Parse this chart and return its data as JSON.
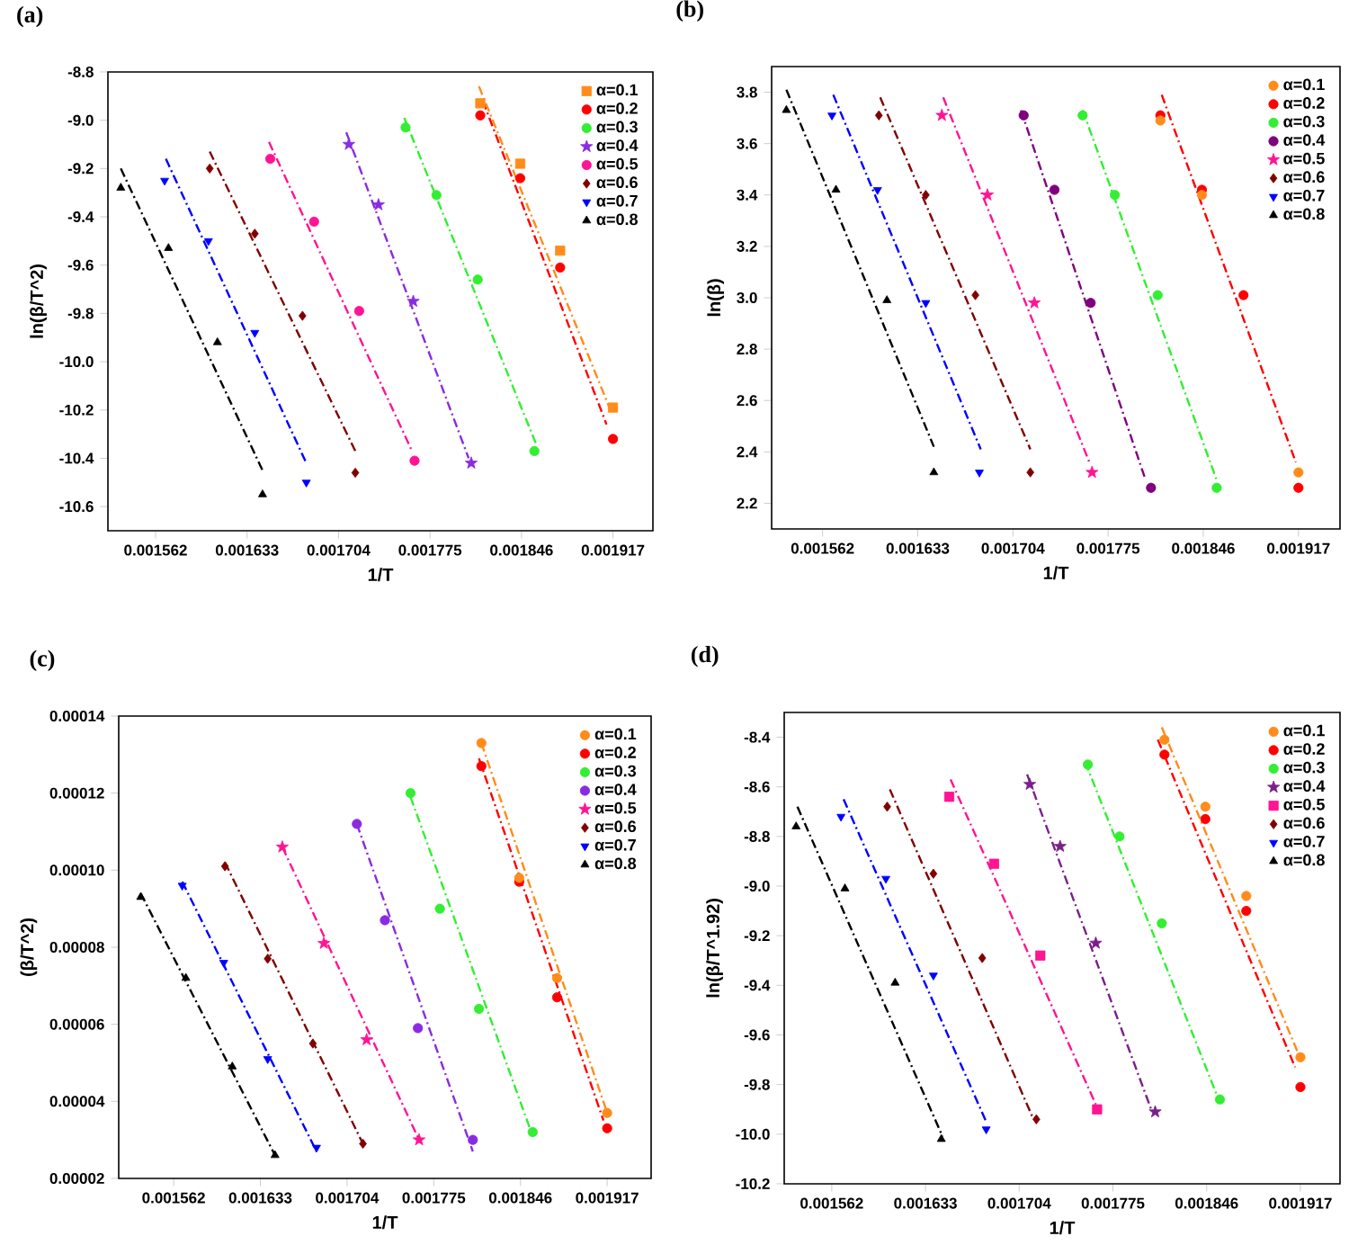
{
  "chart_data": [
    {
      "type": "scatter",
      "title": "(a)",
      "xlabel": "1/T",
      "ylabel": "ln(β/T^2)",
      "xlim": [
        0.001525,
        0.001948
      ],
      "ylim": [
        -10.7,
        -8.8
      ],
      "xticks": [
        0.001562,
        0.001633,
        0.001704,
        0.001775,
        0.001846,
        0.001917
      ],
      "yticks": [
        -8.8,
        {
          "value": -9.0,
          "label": "-9.0"
        },
        -9.2,
        -9.4,
        -9.6,
        -9.8,
        {
          "value": -10.0,
          "label": "-10.0"
        },
        -10.2,
        -10.4,
        -10.6
      ],
      "legend": "top right",
      "series": [
        {
          "name": "α=0.1",
          "marker": "square",
          "color": "#ff8c1a",
          "x": [
            0.001814,
            0.001845,
            0.001876,
            0.001917
          ],
          "values": [
            -8.93,
            -9.18,
            -9.54,
            -10.19
          ]
        },
        {
          "name": "α=0.2",
          "marker": "circle",
          "color": "#ff0000",
          "x": [
            0.001814,
            0.001845,
            0.001876,
            0.001917
          ],
          "values": [
            -8.98,
            -9.24,
            -9.61,
            -10.32
          ]
        },
        {
          "name": "α=0.3",
          "marker": "circle",
          "color": "#33ee33",
          "x": [
            0.001756,
            0.00178,
            0.001812,
            0.001856
          ],
          "values": [
            -9.03,
            -9.31,
            -9.66,
            -10.37
          ]
        },
        {
          "name": "α=0.4",
          "marker": "star",
          "color": "#8a2be2",
          "x": [
            0.001712,
            0.001735,
            0.001762,
            0.001807
          ],
          "values": [
            -9.1,
            -9.35,
            -9.75,
            -10.42
          ]
        },
        {
          "name": "α=0.5",
          "marker": "circle",
          "color": "#ff1493",
          "x": [
            0.001651,
            0.001685,
            0.00172,
            0.001763
          ],
          "values": [
            -9.16,
            -9.42,
            -9.79,
            -10.41
          ]
        },
        {
          "name": "α=0.6",
          "marker": "diamond",
          "color": "#800000",
          "x": [
            0.001604,
            0.001639,
            0.001676,
            0.001717
          ],
          "values": [
            -9.2,
            -9.47,
            -9.81,
            -10.46
          ]
        },
        {
          "name": "α=0.7",
          "marker": "triangle_down",
          "color": "#0000ff",
          "x": [
            0.001569,
            0.001603,
            0.001639,
            0.001679
          ],
          "values": [
            -9.25,
            -9.5,
            -9.88,
            -10.5
          ]
        },
        {
          "name": "α=0.8",
          "marker": "triangle",
          "color": "#000000",
          "x": [
            0.001535,
            0.001572,
            0.00161,
            0.001645
          ],
          "values": [
            -9.28,
            -9.53,
            -9.92,
            -10.55
          ]
        },
        {
          "type": "line",
          "line_style": "dashdot",
          "color": "#ff8c1a",
          "x": [
            0.001813,
            0.001915
          ],
          "values": [
            -8.86,
            -10.2
          ]
        },
        {
          "type": "line",
          "line_style": "dashdot",
          "color": "#ff0000",
          "x": [
            0.001816,
            0.001912
          ],
          "values": [
            -8.92,
            -10.26
          ]
        },
        {
          "type": "line",
          "line_style": "dashdot",
          "color": "#33ee33",
          "x": [
            0.001755,
            0.001858
          ],
          "values": [
            -8.99,
            -10.35
          ]
        },
        {
          "type": "line",
          "line_style": "dashdot",
          "color": "#8a2be2",
          "x": [
            0.00171,
            0.001805
          ],
          "values": [
            -9.05,
            -10.4
          ]
        },
        {
          "type": "line",
          "line_style": "dashdot",
          "color": "#ff1493",
          "x": [
            0.00165,
            0.001761
          ],
          "values": [
            -9.09,
            -10.37
          ]
        },
        {
          "type": "line",
          "line_style": "dashdot",
          "color": "#800000",
          "x": [
            0.001604,
            0.001717
          ],
          "values": [
            -9.13,
            -10.37
          ]
        },
        {
          "type": "line",
          "line_style": "dashdot",
          "color": "#0000ff",
          "x": [
            0.00157,
            0.001679
          ],
          "values": [
            -9.16,
            -10.42
          ]
        },
        {
          "type": "line",
          "line_style": "dashdot",
          "color": "#000000",
          "x": [
            0.001535,
            0.001645
          ],
          "values": [
            -9.2,
            -10.45
          ]
        }
      ]
    },
    {
      "type": "scatter",
      "title": "(b)",
      "xlabel": "1/T",
      "ylabel": "ln(β)",
      "xlim": [
        0.001524,
        0.001948
      ],
      "ylim": [
        2.1,
        3.9
      ],
      "xticks": [
        0.001562,
        0.001633,
        0.001704,
        0.001775,
        0.001846,
        0.001917
      ],
      "yticks": [
        2.2,
        2.4,
        2.6,
        2.8,
        {
          "value": 3.0,
          "label": "3.0"
        },
        3.2,
        3.4,
        3.6,
        3.8
      ],
      "legend": "top right",
      "series": [
        {
          "name": "α=0.1",
          "marker": "circle",
          "color": "#ff8c1a",
          "x": [
            0.001814,
            0.001845,
            0.001876,
            0.001917
          ],
          "values": [
            3.69,
            3.4,
            null,
            2.32
          ]
        },
        {
          "name": "α=0.2",
          "marker": "circle",
          "color": "#ff0000",
          "x": [
            0.001814,
            0.001845,
            0.001876,
            0.001917
          ],
          "values": [
            3.71,
            3.42,
            3.01,
            2.26
          ]
        },
        {
          "name": "α=0.3",
          "marker": "circle",
          "color": "#33ee33",
          "x": [
            0.001756,
            0.00178,
            0.001812,
            0.001856
          ],
          "values": [
            3.71,
            3.4,
            3.01,
            2.26
          ]
        },
        {
          "name": "α=0.4",
          "marker": "circle",
          "color": "#800080",
          "x": [
            0.001712,
            0.001735,
            0.001762,
            0.001807
          ],
          "values": [
            3.71,
            3.42,
            2.98,
            2.26
          ]
        },
        {
          "name": "α=0.5",
          "marker": "star",
          "color": "#ff1493",
          "x": [
            0.001651,
            0.001685,
            0.00172,
            0.001763
          ],
          "values": [
            3.71,
            3.4,
            2.98,
            2.32
          ]
        },
        {
          "name": "α=0.6",
          "marker": "diamond",
          "color": "#800000",
          "x": [
            0.001604,
            0.001639,
            0.001676,
            0.001717
          ],
          "values": [
            3.71,
            3.4,
            3.01,
            2.32
          ]
        },
        {
          "name": "α=0.7",
          "marker": "triangle_down",
          "color": "#0000ff",
          "x": [
            0.001569,
            0.001603,
            0.001639,
            0.001679
          ],
          "values": [
            3.71,
            3.42,
            2.98,
            2.32
          ]
        },
        {
          "name": "α=0.8",
          "marker": "triangle",
          "color": "#000000",
          "x": [
            0.001535,
            0.001572,
            0.00161,
            0.001645
          ],
          "values": [
            3.73,
            3.42,
            2.99,
            2.32
          ]
        },
        {
          "type": "line",
          "line_style": "dashdot",
          "color": "#ff0000",
          "x": [
            0.001815,
            0.001915
          ],
          "values": [
            3.79,
            2.36
          ]
        },
        {
          "type": "line",
          "line_style": "dashdot",
          "color": "#33ee33",
          "x": [
            0.001756,
            0.001856
          ],
          "values": [
            3.73,
            2.29
          ]
        },
        {
          "type": "line",
          "line_style": "dashdot",
          "color": "#800080",
          "x": [
            0.00171,
            0.001803
          ],
          "values": [
            3.73,
            2.29
          ]
        },
        {
          "type": "line",
          "line_style": "dashdot",
          "color": "#ff1493",
          "x": [
            0.001652,
            0.001761
          ],
          "values": [
            3.78,
            2.36
          ]
        },
        {
          "type": "line",
          "line_style": "dashdot",
          "color": "#800000",
          "x": [
            0.001605,
            0.001717
          ],
          "values": [
            3.78,
            2.41
          ]
        },
        {
          "type": "line",
          "line_style": "dashdot",
          "color": "#0000ff",
          "x": [
            0.00157,
            0.00168
          ],
          "values": [
            3.79,
            2.41
          ]
        },
        {
          "type": "line",
          "line_style": "dashdot",
          "color": "#000000",
          "x": [
            0.001535,
            0.001645
          ],
          "values": [
            3.81,
            2.42
          ]
        }
      ]
    },
    {
      "type": "scatter",
      "title": "(c)",
      "xlabel": "1/T",
      "ylabel": "(β/T^2)",
      "xlim": [
        0.001517,
        0.001953
      ],
      "ylim": [
        2e-05,
        0.00014
      ],
      "xticks": [
        0.001562,
        0.001633,
        0.001704,
        0.001775,
        0.001846,
        0.001917
      ],
      "yticks": [
        {
          "value": 2e-05,
          "label": "0.00002"
        },
        {
          "value": 4e-05,
          "label": "0.00004"
        },
        {
          "value": 6e-05,
          "label": "0.00006"
        },
        {
          "value": 8e-05,
          "label": "0.00008"
        },
        {
          "value": 0.0001,
          "label": "0.00010"
        },
        {
          "value": 0.00012,
          "label": "0.00012"
        },
        {
          "value": 0.00014,
          "label": "0.00014"
        }
      ],
      "legend": "top right",
      "series": [
        {
          "name": "α=0.1",
          "marker": "circle",
          "color": "#ff8c1a",
          "x": [
            0.001814,
            0.001845,
            0.001876,
            0.001917
          ],
          "values": [
            0.000133,
            9.8e-05,
            7.2e-05,
            3.7e-05
          ]
        },
        {
          "name": "α=0.2",
          "marker": "circle",
          "color": "#ff0000",
          "x": [
            0.001814,
            0.001845,
            0.001876,
            0.001917
          ],
          "values": [
            0.000127,
            9.7e-05,
            6.7e-05,
            3.3e-05
          ]
        },
        {
          "name": "α=0.3",
          "marker": "circle",
          "color": "#33ee33",
          "x": [
            0.001756,
            0.00178,
            0.001812,
            0.001856
          ],
          "values": [
            0.00012,
            9e-05,
            6.4e-05,
            3.2e-05
          ]
        },
        {
          "name": "α=0.4",
          "marker": "circle",
          "color": "#8a2be2",
          "x": [
            0.001712,
            0.001735,
            0.001762,
            0.001807
          ],
          "values": [
            0.000112,
            8.7e-05,
            5.9e-05,
            3e-05
          ]
        },
        {
          "name": "α=0.5",
          "marker": "star",
          "color": "#ff1493",
          "x": [
            0.001651,
            0.001685,
            0.00172,
            0.001763
          ],
          "values": [
            0.000106,
            8.1e-05,
            5.6e-05,
            3e-05
          ]
        },
        {
          "name": "α=0.6",
          "marker": "diamond",
          "color": "#800000",
          "x": [
            0.001604,
            0.001639,
            0.001676,
            0.001717
          ],
          "values": [
            0.000101,
            7.7e-05,
            5.5e-05,
            2.9e-05
          ]
        },
        {
          "name": "α=0.7",
          "marker": "triangle_down",
          "color": "#0000ff",
          "x": [
            0.001569,
            0.001603,
            0.001639,
            0.001679
          ],
          "values": [
            9.6e-05,
            7.6e-05,
            5.1e-05,
            2.8e-05
          ]
        },
        {
          "name": "α=0.8",
          "marker": "triangle",
          "color": "#000000",
          "x": [
            0.001535,
            0.001572,
            0.00161,
            0.001645
          ],
          "values": [
            9.3e-05,
            7.2e-05,
            4.9e-05,
            2.6e-05
          ]
        },
        {
          "type": "line",
          "line_style": "dashdot",
          "color": "#ff8c1a",
          "x": [
            0.001814,
            0.001916
          ],
          "values": [
            0.000133,
            3.8e-05
          ]
        },
        {
          "type": "line",
          "line_style": "dashdot",
          "color": "#ff0000",
          "x": [
            0.001812,
            0.001914
          ],
          "values": [
            0.000129,
            3.5e-05
          ]
        },
        {
          "type": "line",
          "line_style": "dashdot",
          "color": "#33ee33",
          "x": [
            0.001756,
            0.001856
          ],
          "values": [
            0.000119,
            3.1e-05
          ]
        },
        {
          "type": "line",
          "line_style": "dashdot",
          "color": "#8a2be2",
          "x": [
            0.001712,
            0.001807
          ],
          "values": [
            0.000112,
            2.7e-05
          ]
        },
        {
          "type": "line",
          "line_style": "dashdot",
          "color": "#ff1493",
          "x": [
            0.001651,
            0.001763
          ],
          "values": [
            0.000106,
            3e-05
          ]
        },
        {
          "type": "line",
          "line_style": "dashdot",
          "color": "#800000",
          "x": [
            0.001604,
            0.001717
          ],
          "values": [
            0.000102,
            2.9e-05
          ]
        },
        {
          "type": "line",
          "line_style": "dashdot",
          "color": "#0000ff",
          "x": [
            0.001569,
            0.001679
          ],
          "values": [
            9.7e-05,
            2.7e-05
          ]
        },
        {
          "type": "line",
          "line_style": "dashdot",
          "color": "#000000",
          "x": [
            0.001535,
            0.001645
          ],
          "values": [
            9.4e-05,
            2.6e-05
          ]
        }
      ]
    },
    {
      "type": "scatter",
      "title": "(d)",
      "xlabel": "1/T",
      "ylabel": "ln(β/T^1.92)",
      "xlim": [
        0.001526,
        0.001947
      ],
      "ylim": [
        -10.2,
        -8.3
      ],
      "xticks": [
        0.001562,
        0.001633,
        0.001704,
        0.001775,
        0.001846,
        0.001917
      ],
      "yticks": [
        -8.4,
        -8.6,
        -8.8,
        {
          "value": -9.0,
          "label": "-9.0"
        },
        -9.2,
        -9.4,
        -9.6,
        -9.8,
        {
          "value": -10.0,
          "label": "-10.0"
        },
        -10.2
      ],
      "legend": "top right",
      "series": [
        {
          "name": "α=0.1",
          "marker": "circle",
          "color": "#ff8c1a",
          "x": [
            0.001814,
            0.001845,
            0.001876,
            0.001917
          ],
          "values": [
            -8.41,
            -8.68,
            -9.04,
            -9.69
          ]
        },
        {
          "name": "α=0.2",
          "marker": "circle",
          "color": "#ff0000",
          "x": [
            0.001814,
            0.001845,
            0.001876,
            0.001917
          ],
          "values": [
            -8.47,
            -8.73,
            -9.1,
            -9.81
          ]
        },
        {
          "name": "α=0.3",
          "marker": "circle",
          "color": "#33ee33",
          "x": [
            0.001756,
            0.00178,
            0.001812,
            0.001856
          ],
          "values": [
            -8.51,
            -8.8,
            -9.15,
            -9.86
          ]
        },
        {
          "name": "α=0.4",
          "marker": "star",
          "color": "#7b1f8a",
          "x": [
            0.001712,
            0.001735,
            0.001762,
            0.001807
          ],
          "values": [
            -8.59,
            -8.84,
            -9.23,
            -9.91
          ]
        },
        {
          "name": "α=0.5",
          "marker": "square",
          "color": "#ff1493",
          "x": [
            0.001651,
            0.001685,
            0.00172,
            0.001763
          ],
          "values": [
            -8.64,
            -8.91,
            -9.28,
            -9.9
          ]
        },
        {
          "name": "α=0.6",
          "marker": "diamond",
          "color": "#800000",
          "x": [
            0.001604,
            0.001639,
            0.001676,
            0.001717
          ],
          "values": [
            -8.68,
            -8.95,
            -9.29,
            -9.94
          ]
        },
        {
          "name": "α=0.7",
          "marker": "triangle_down",
          "color": "#0000ff",
          "x": [
            0.001569,
            0.001603,
            0.001639,
            0.001679
          ],
          "values": [
            -8.72,
            -8.97,
            -9.36,
            -9.98
          ]
        },
        {
          "name": "α=0.8",
          "marker": "triangle",
          "color": "#000000",
          "x": [
            0.001535,
            0.001572,
            0.00161,
            0.001645
          ],
          "values": [
            -8.76,
            -9.01,
            -9.39,
            -10.02
          ]
        },
        {
          "type": "line",
          "line_style": "dashdot",
          "color": "#ff8c1a",
          "x": [
            0.001812,
            0.001915
          ],
          "values": [
            -8.36,
            -9.67
          ]
        },
        {
          "type": "line",
          "line_style": "dashdot",
          "color": "#ff0000",
          "x": [
            0.001809,
            0.001913
          ],
          "values": [
            -8.41,
            -9.73
          ]
        },
        {
          "type": "line",
          "line_style": "dashdot",
          "color": "#33ee33",
          "x": [
            0.001754,
            0.001855
          ],
          "values": [
            -8.5,
            -9.86
          ]
        },
        {
          "type": "line",
          "line_style": "dashdot",
          "color": "#7b1f8a",
          "x": [
            0.00171,
            0.001804
          ],
          "values": [
            -8.55,
            -9.9
          ]
        },
        {
          "type": "line",
          "line_style": "dashdot",
          "color": "#ff1493",
          "x": [
            0.001652,
            0.001762
          ],
          "values": [
            -8.57,
            -9.88
          ]
        },
        {
          "type": "line",
          "line_style": "dashdot",
          "color": "#800000",
          "x": [
            0.001606,
            0.001714
          ],
          "values": [
            -8.61,
            -9.93
          ]
        },
        {
          "type": "line",
          "line_style": "dashdot",
          "color": "#0000ff",
          "x": [
            0.001571,
            0.001679
          ],
          "values": [
            -8.65,
            -9.95
          ]
        },
        {
          "type": "line",
          "line_style": "dashdot",
          "color": "#000000",
          "x": [
            0.001536,
            0.001646
          ],
          "values": [
            -8.68,
            -10.01
          ]
        }
      ]
    }
  ]
}
